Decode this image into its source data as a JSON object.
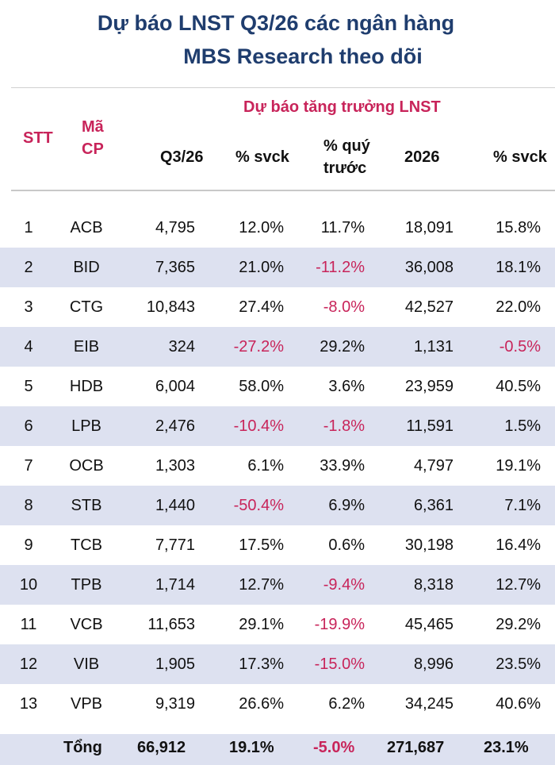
{
  "title": {
    "line1": "Dự báo LNST Q3/26 các ngân hàng",
    "line2": "MBS Research theo dõi"
  },
  "header": {
    "stt": "STT",
    "ma_line1": "Mã",
    "ma_line2": "CP",
    "group": "Dự báo tăng trưởng LNST",
    "q3": "Q3/26",
    "svck": "% svck",
    "quy_line1": "% quý",
    "quy_line2": "trước",
    "y2026": "2026",
    "svck2": "% svck"
  },
  "rows": [
    {
      "stt": "1",
      "ma": "ACB",
      "q3": "4,795",
      "svck": "12.0%",
      "quy": "11.7%",
      "y2026": "18,091",
      "svck2": "15.8%"
    },
    {
      "stt": "2",
      "ma": "BID",
      "q3": "7,365",
      "svck": "21.0%",
      "quy": "-11.2%",
      "y2026": "36,008",
      "svck2": "18.1%"
    },
    {
      "stt": "3",
      "ma": "CTG",
      "q3": "10,843",
      "svck": "27.4%",
      "quy": "-8.0%",
      "y2026": "42,527",
      "svck2": "22.0%"
    },
    {
      "stt": "4",
      "ma": "EIB",
      "q3": "324",
      "svck": "-27.2%",
      "quy": "29.2%",
      "y2026": "1,131",
      "svck2": "-0.5%"
    },
    {
      "stt": "5",
      "ma": "HDB",
      "q3": "6,004",
      "svck": "58.0%",
      "quy": "3.6%",
      "y2026": "23,959",
      "svck2": "40.5%"
    },
    {
      "stt": "6",
      "ma": "LPB",
      "q3": "2,476",
      "svck": "-10.4%",
      "quy": "-1.8%",
      "y2026": "11,591",
      "svck2": "1.5%"
    },
    {
      "stt": "7",
      "ma": "OCB",
      "q3": "1,303",
      "svck": "6.1%",
      "quy": "33.9%",
      "y2026": "4,797",
      "svck2": "19.1%"
    },
    {
      "stt": "8",
      "ma": "STB",
      "q3": "1,440",
      "svck": "-50.4%",
      "quy": "6.9%",
      "y2026": "6,361",
      "svck2": "7.1%"
    },
    {
      "stt": "9",
      "ma": "TCB",
      "q3": "7,771",
      "svck": "17.5%",
      "quy": "0.6%",
      "y2026": "30,198",
      "svck2": "16.4%"
    },
    {
      "stt": "10",
      "ma": "TPB",
      "q3": "1,714",
      "svck": "12.7%",
      "quy": "-9.4%",
      "y2026": "8,318",
      "svck2": "12.7%"
    },
    {
      "stt": "11",
      "ma": "VCB",
      "q3": "11,653",
      "svck": "29.1%",
      "quy": "-19.9%",
      "y2026": "45,465",
      "svck2": "29.2%"
    },
    {
      "stt": "12",
      "ma": "VIB",
      "q3": "1,905",
      "svck": "17.3%",
      "quy": "-15.0%",
      "y2026": "8,996",
      "svck2": "23.5%"
    },
    {
      "stt": "13",
      "ma": "VPB",
      "q3": "9,319",
      "svck": "26.6%",
      "quy": "6.2%",
      "y2026": "34,245",
      "svck2": "40.6%"
    }
  ],
  "total": {
    "label": "Tổng",
    "q3": "66,912",
    "svck": "19.1%",
    "quy": "-5.0%",
    "y2026": "271,687",
    "svck2": "23.1%"
  },
  "colors": {
    "title": "#1f3d6e",
    "negative": "#c8245a",
    "row_shade": "#dde1f0"
  }
}
